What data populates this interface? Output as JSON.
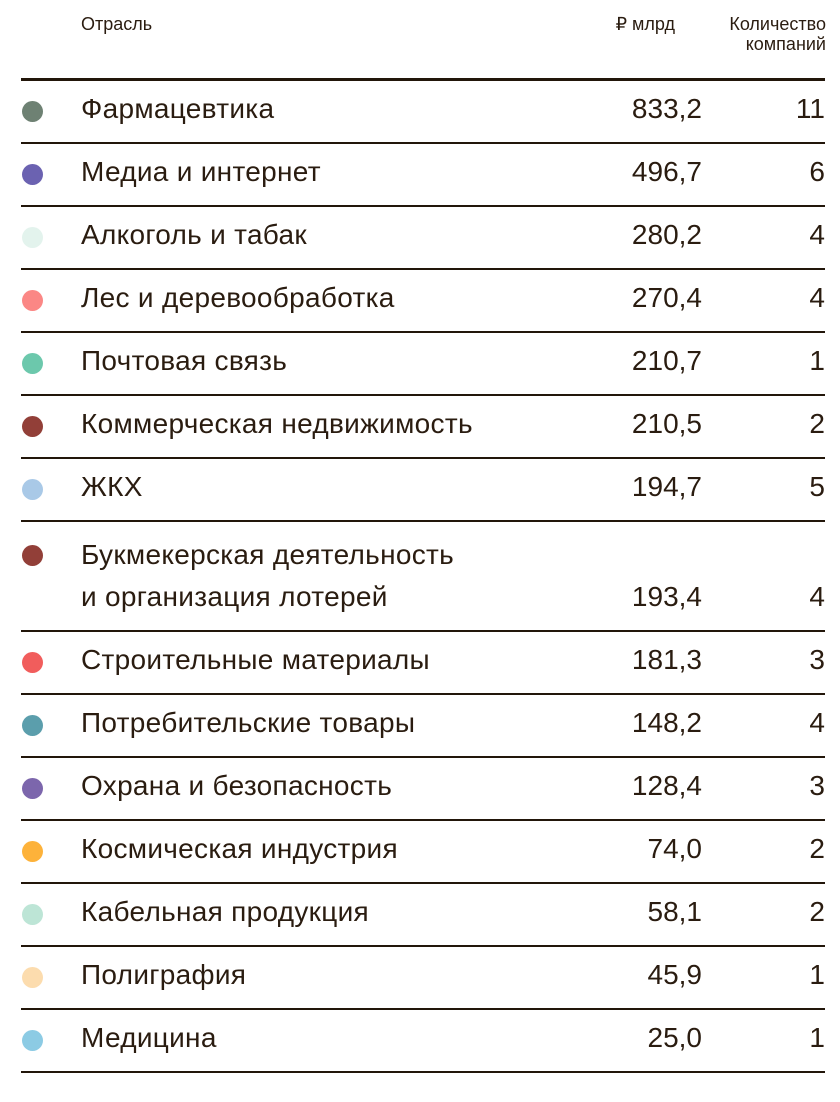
{
  "header": {
    "industry": "Отрасль",
    "value": "₽ млрд",
    "count": "Количество\nкомпаний"
  },
  "rows": [
    {
      "industry": "Фармацевтика",
      "value": "833,2",
      "count": "11",
      "color": "#6e8173"
    },
    {
      "industry": "Медиа и интернет",
      "value": "496,7",
      "count": "6",
      "color": "#6b62b1"
    },
    {
      "industry": "Алкоголь и табак",
      "value": "280,2",
      "count": "4",
      "color": "#e3f3ed"
    },
    {
      "industry": "Лес и деревообработка",
      "value": "270,4",
      "count": "4",
      "color": "#fb8785"
    },
    {
      "industry": "Почтовая связь",
      "value": "210,7",
      "count": "1",
      "color": "#6cc8ac"
    },
    {
      "industry": "Коммерческая недвижимость",
      "value": "210,5",
      "count": "2",
      "color": "#923f38"
    },
    {
      "industry": "ЖКХ",
      "value": "194,7",
      "count": "5",
      "color": "#a9c9e7"
    },
    {
      "industry": "Букмекерская деятельность\nи организация лотерей",
      "value": "193,4",
      "count": "4",
      "color": "#923f38"
    },
    {
      "industry": "Строительные материалы",
      "value": "181,3",
      "count": "3",
      "color": "#f15d5c"
    },
    {
      "industry": "Потребительские товары",
      "value": "148,2",
      "count": "4",
      "color": "#5b9eac"
    },
    {
      "industry": "Охрана и безопасность",
      "value": "128,4",
      "count": "3",
      "color": "#7c66ac"
    },
    {
      "industry": "Космическая индустрия",
      "value": "74,0",
      "count": "2",
      "color": "#fdb23a"
    },
    {
      "industry": "Кабельная продукция",
      "value": "58,1",
      "count": "2",
      "color": "#bde5d6"
    },
    {
      "industry": "Полиграфия",
      "value": "45,9",
      "count": "1",
      "color": "#fcdcae"
    },
    {
      "industry": "Медицина",
      "value": "25,0",
      "count": "1",
      "color": "#8ccbe4"
    }
  ]
}
